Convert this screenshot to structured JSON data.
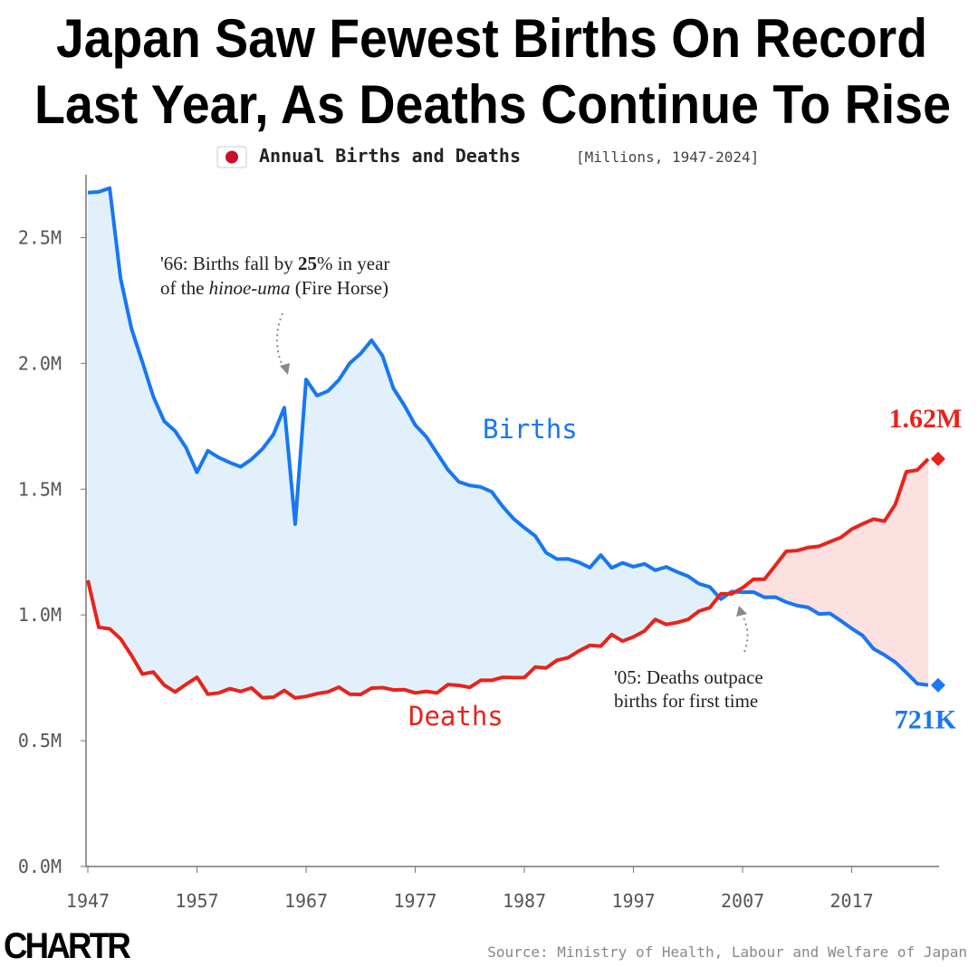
{
  "chart_data": {
    "type": "line",
    "title": [
      "Japan Saw Fewest Births On Record",
      "Last Year, As Deaths Continue To Rise"
    ],
    "subtitle": "Annual Births and Deaths",
    "subtitle_note": "[Millions, 1947-2024]",
    "x": [
      1947,
      1948,
      1949,
      1950,
      1951,
      1952,
      1953,
      1954,
      1955,
      1956,
      1957,
      1958,
      1959,
      1960,
      1961,
      1962,
      1963,
      1964,
      1965,
      1966,
      1967,
      1968,
      1969,
      1970,
      1971,
      1972,
      1973,
      1974,
      1975,
      1976,
      1977,
      1978,
      1979,
      1980,
      1981,
      1982,
      1983,
      1984,
      1985,
      1986,
      1987,
      1988,
      1989,
      1990,
      1991,
      1992,
      1993,
      1994,
      1995,
      1996,
      1997,
      1998,
      1999,
      2000,
      2001,
      2002,
      2003,
      2004,
      2005,
      2006,
      2007,
      2008,
      2009,
      2010,
      2011,
      2012,
      2013,
      2014,
      2015,
      2016,
      2017,
      2018,
      2019,
      2020,
      2021,
      2022,
      2023,
      2024
    ],
    "series": [
      {
        "name": "Births",
        "color": "#1877f2",
        "fill": "#e2f0fc",
        "values": [
          2.679,
          2.682,
          2.697,
          2.338,
          2.138,
          2.005,
          1.868,
          1.77,
          1.731,
          1.665,
          1.567,
          1.653,
          1.626,
          1.606,
          1.589,
          1.619,
          1.66,
          1.717,
          1.824,
          1.361,
          1.936,
          1.872,
          1.89,
          1.934,
          2.001,
          2.039,
          2.092,
          2.03,
          1.901,
          1.833,
          1.755,
          1.709,
          1.643,
          1.577,
          1.529,
          1.515,
          1.509,
          1.49,
          1.432,
          1.383,
          1.347,
          1.314,
          1.247,
          1.222,
          1.223,
          1.209,
          1.188,
          1.238,
          1.187,
          1.207,
          1.192,
          1.203,
          1.178,
          1.191,
          1.171,
          1.154,
          1.124,
          1.111,
          1.063,
          1.093,
          1.09,
          1.091,
          1.07,
          1.071,
          1.051,
          1.037,
          1.03,
          1.004,
          1.006,
          0.977,
          0.946,
          0.918,
          0.865,
          0.841,
          0.812,
          0.771,
          0.727,
          0.721
        ],
        "value_labels": [
          null,
          null,
          null,
          null,
          null,
          null,
          null,
          null,
          null,
          null,
          null,
          null,
          null,
          null,
          null,
          null,
          null,
          null,
          null,
          null,
          null,
          null,
          null,
          null,
          null,
          null,
          null,
          null,
          null,
          null,
          null,
          null,
          null,
          null,
          null,
          null,
          null,
          null,
          null,
          null,
          null,
          null,
          null,
          null,
          null,
          null,
          null,
          null,
          null,
          null,
          null,
          null,
          null,
          null,
          null,
          null,
          null,
          null,
          null,
          null,
          null,
          null,
          null,
          null,
          null,
          null,
          null,
          null,
          null,
          null,
          null,
          null,
          null,
          null,
          null,
          null,
          null,
          "721K"
        ]
      },
      {
        "name": "Deaths",
        "color": "#e8231b",
        "fill": "#fde0e0",
        "values": [
          1.138,
          0.951,
          0.945,
          0.905,
          0.839,
          0.765,
          0.773,
          0.721,
          0.694,
          0.724,
          0.752,
          0.685,
          0.69,
          0.707,
          0.696,
          0.71,
          0.671,
          0.673,
          0.7,
          0.67,
          0.676,
          0.687,
          0.694,
          0.713,
          0.685,
          0.684,
          0.709,
          0.711,
          0.702,
          0.703,
          0.69,
          0.696,
          0.69,
          0.723,
          0.72,
          0.712,
          0.74,
          0.74,
          0.752,
          0.751,
          0.751,
          0.793,
          0.789,
          0.82,
          0.83,
          0.857,
          0.879,
          0.876,
          0.922,
          0.896,
          0.913,
          0.936,
          0.982,
          0.962,
          0.97,
          0.982,
          1.015,
          1.029,
          1.084,
          1.084,
          1.108,
          1.142,
          1.142,
          1.197,
          1.253,
          1.256,
          1.268,
          1.273,
          1.291,
          1.308,
          1.341,
          1.362,
          1.381,
          1.373,
          1.44,
          1.569,
          1.576,
          1.62
        ],
        "value_labels": [
          null,
          null,
          null,
          null,
          null,
          null,
          null,
          null,
          null,
          null,
          null,
          null,
          null,
          null,
          null,
          null,
          null,
          null,
          null,
          null,
          null,
          null,
          null,
          null,
          null,
          null,
          null,
          null,
          null,
          null,
          null,
          null,
          null,
          null,
          null,
          null,
          null,
          null,
          null,
          null,
          null,
          null,
          null,
          null,
          null,
          null,
          null,
          null,
          null,
          null,
          null,
          null,
          null,
          null,
          null,
          null,
          null,
          null,
          null,
          null,
          null,
          null,
          null,
          null,
          null,
          null,
          null,
          null,
          null,
          null,
          null,
          null,
          null,
          null,
          null,
          null,
          null,
          "1.62M"
        ]
      }
    ],
    "xlim": [
      1947,
      2025
    ],
    "xticks": [
      1947,
      1957,
      1967,
      1977,
      1987,
      1997,
      2007,
      2017
    ],
    "ylim": [
      0,
      2.75
    ],
    "yticks": [
      {
        "value": 0,
        "label": "0.0M"
      },
      {
        "value": 0.5,
        "label": "0.5M"
      },
      {
        "value": 1,
        "label": "1.0M"
      },
      {
        "value": 1.5,
        "label": "1.5M"
      },
      {
        "value": 2,
        "label": "2.0M"
      },
      {
        "value": 2.5,
        "label": "2.5M"
      }
    ],
    "annotations": [
      {
        "lines": [
          [
            "'66: Births fall by ",
            "25",
            "% in year"
          ],
          [
            "of the ",
            "hinoe-uma",
            " (Fire Horse)"
          ]
        ]
      },
      {
        "lines": [
          [
            "'05: Deaths outpace"
          ],
          [
            "births for first time"
          ]
        ]
      }
    ],
    "source": "Source: Ministry of Health, Labour and Welfare of Japan",
    "brand": "CHARTR"
  }
}
